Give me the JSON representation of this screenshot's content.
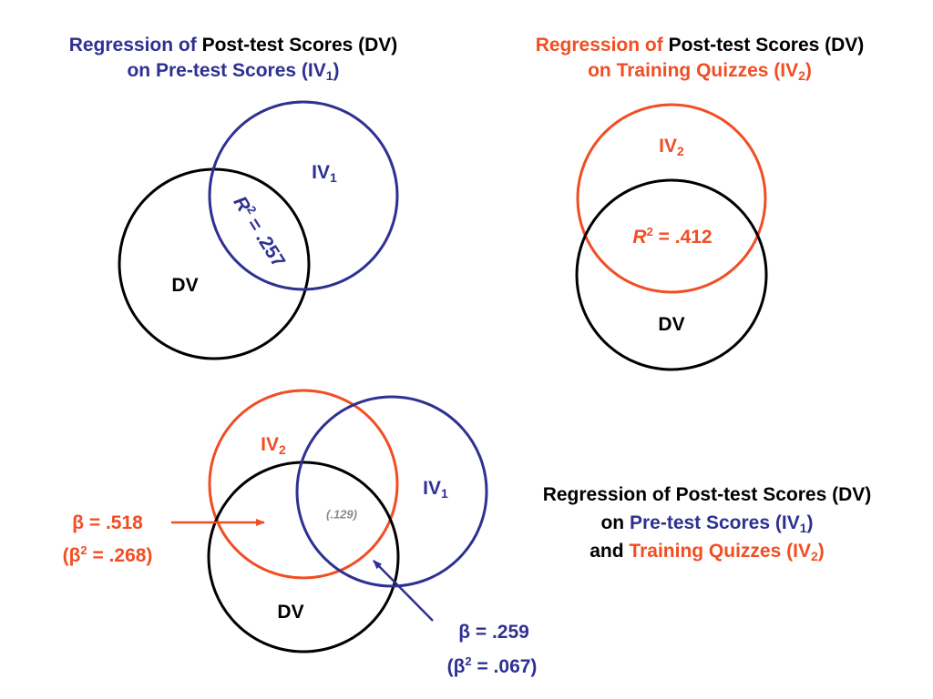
{
  "colors": {
    "iv1": "#2e3192",
    "iv2": "#f04e23",
    "dv": "#000000",
    "overlap_text": "#8a8a8a"
  },
  "top_left": {
    "title_line1_a": "Regression of ",
    "title_line1_b": "Post-test Scores (DV)",
    "title_line2_a": "on Pre-test Scores (IV",
    "title_line2_sub": "1",
    "title_line2_c": ")",
    "label_iv": "IV",
    "label_iv_sub": "1",
    "label_dv": "DV",
    "r2_label": "R",
    "r2_sup": "2",
    "r2_value": " = .257"
  },
  "top_right": {
    "title_line1_a": "Regression of ",
    "title_line1_b": "Post-test Scores (DV)",
    "title_line2_a": "on Training Quizzes (IV",
    "title_line2_sub": "2",
    "title_line2_c": ")",
    "label_iv": "IV",
    "label_iv_sub": "2",
    "label_dv": "DV",
    "r2_label": "R",
    "r2_sup": "2",
    "r2_value": " = .412"
  },
  "bottom": {
    "title_line1": "Regression of Post-test Scores (DV)",
    "title_line2_a": "on ",
    "title_line2_b": "Pre-test Scores (IV",
    "title_line2_sub": "1",
    "title_line2_c": ")",
    "title_line3_a": "and ",
    "title_line3_b": "Training Quizzes (IV",
    "title_line3_sub": "2",
    "title_line3_c": ")",
    "label_iv2": "IV",
    "label_iv2_sub": "2",
    "label_iv1": "IV",
    "label_iv1_sub": "1",
    "label_dv": "DV",
    "overlap_value": "(.129)",
    "beta_iv2": "β = .518",
    "beta_iv2_sq_a": "(β",
    "beta_iv2_sq_sup": "2",
    "beta_iv2_sq_b": " = .268)",
    "beta_iv1": "β = .259",
    "beta_iv1_sq_a": "(β",
    "beta_iv1_sq_sup": "2",
    "beta_iv1_sq_b": " = .067)"
  }
}
